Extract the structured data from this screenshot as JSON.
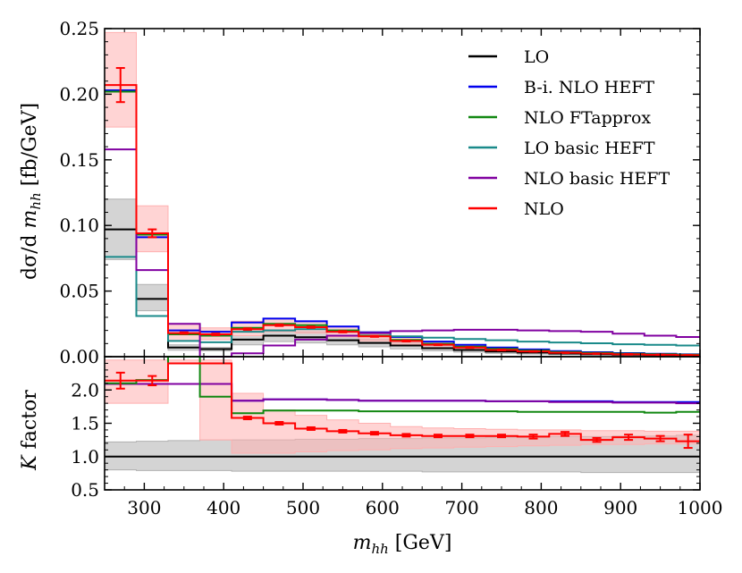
{
  "chart_data": {
    "type": "line",
    "style": "step",
    "bin_edges": [
      250,
      290,
      330,
      370,
      410,
      450,
      490,
      530,
      570,
      610,
      650,
      690,
      730,
      770,
      810,
      850,
      890,
      930,
      970,
      1000
    ],
    "x_label_main": "m",
    "x_label_sub": "hh",
    "x_label_unit": " [GeV]",
    "xlim": [
      250,
      1000
    ],
    "x_ticks": [
      "300",
      "400",
      "500",
      "600",
      "700",
      "800",
      "900",
      "1000"
    ],
    "x_tick_values": [
      300,
      400,
      500,
      600,
      700,
      800,
      900,
      1000
    ],
    "colors": {
      "LO": "#000000",
      "BiNLO": "#0000ee",
      "FTapprox": "#118811",
      "LObasic": "#1a8a8a",
      "NLObasic": "#8000a0",
      "NLO": "#ff0000"
    },
    "main": {
      "ylabel_pre": "dσ/d ",
      "ylabel_var": "m",
      "ylabel_sub": "hh",
      "ylabel_unit": " [fb/GeV]",
      "ylim": [
        0,
        0.25
      ],
      "y_ticks": [
        "0.00",
        "0.05",
        "0.10",
        "0.15",
        "0.20",
        "0.25"
      ],
      "y_tick_values": [
        0,
        0.05,
        0.1,
        0.15,
        0.2,
        0.25
      ],
      "bands": [
        {
          "series": "LO",
          "fill": "#b0b0b0",
          "lo": [
            0.074,
            0.035,
            0.005,
            0.0045,
            0.009,
            0.0115,
            0.0105,
            0.009,
            0.0075,
            0.006,
            0.0045,
            0.0035,
            0.0025,
            0.002,
            0.0015,
            0.0012,
            0.001,
            0.0008,
            0.0006
          ],
          "hi": [
            0.12,
            0.055,
            0.009,
            0.007,
            0.016,
            0.0205,
            0.019,
            0.016,
            0.0135,
            0.011,
            0.0085,
            0.0068,
            0.0052,
            0.0042,
            0.0033,
            0.0027,
            0.0021,
            0.0018,
            0.0014
          ]
        },
        {
          "series": "NLO",
          "fill": "#ffb0b0",
          "lo": [
            0.175,
            0.08,
            0.012,
            0.013,
            0.016,
            0.019,
            0.018,
            0.015,
            0.012,
            0.009,
            0.0068,
            0.0052,
            0.0038,
            0.003,
            0.0022,
            0.0017,
            0.0013,
            0.0011,
            0.0008
          ],
          "hi": [
            0.247,
            0.115,
            0.025,
            0.022,
            0.027,
            0.029,
            0.027,
            0.023,
            0.019,
            0.015,
            0.0112,
            0.0088,
            0.0065,
            0.005,
            0.0038,
            0.0029,
            0.0023,
            0.0018,
            0.0014
          ]
        }
      ],
      "series": [
        {
          "key": "LO",
          "name": "LO",
          "values": [
            0.097,
            0.044,
            0.007,
            0.0058,
            0.013,
            0.016,
            0.0148,
            0.0125,
            0.0105,
            0.0085,
            0.0065,
            0.0051,
            0.0039,
            0.0031,
            0.0024,
            0.0019,
            0.0015,
            0.0013,
            0.001
          ]
        },
        {
          "key": "BiNLO",
          "name": "B-i. NLO HEFT",
          "values": [
            0.203,
            0.091,
            0.02,
            0.019,
            0.026,
            0.029,
            0.027,
            0.023,
            0.0185,
            0.015,
            0.0115,
            0.009,
            0.007,
            0.0055,
            0.0042,
            0.0034,
            0.0027,
            0.0022,
            0.0018
          ]
        },
        {
          "key": "FTapprox",
          "name": "NLO FTapprox",
          "values": [
            0.202,
            0.093,
            0.017,
            0.016,
            0.022,
            0.025,
            0.024,
            0.02,
            0.016,
            0.0128,
            0.0098,
            0.0077,
            0.006,
            0.0047,
            0.0036,
            0.0029,
            0.0023,
            0.0019,
            0.0015
          ]
        },
        {
          "key": "LObasic",
          "name": "LO basic HEFT",
          "values": [
            0.076,
            0.031,
            0.012,
            0.011,
            0.019,
            0.02,
            0.021,
            0.019,
            0.018,
            0.0155,
            0.0145,
            0.0135,
            0.0125,
            0.0115,
            0.0108,
            0.0102,
            0.0095,
            0.009,
            0.0085
          ]
        },
        {
          "key": "NLObasic",
          "name": "NLO basic HEFT",
          "values": [
            0.158,
            0.066,
            0.025,
            0.0,
            0.0025,
            0.0085,
            0.013,
            0.016,
            0.018,
            0.0195,
            0.02,
            0.0205,
            0.0205,
            0.02,
            0.0195,
            0.019,
            0.0175,
            0.016,
            0.015
          ]
        },
        {
          "key": "NLO",
          "name": "NLO",
          "values": [
            0.207,
            0.094,
            0.018,
            0.017,
            0.021,
            0.024,
            0.0225,
            0.019,
            0.0155,
            0.012,
            0.0091,
            0.007,
            0.0051,
            0.004,
            0.003,
            0.0023,
            0.0018,
            0.0014,
            0.0011
          ]
        }
      ],
      "errors": {
        "series": "NLO",
        "err": [
          0.013,
          0.003,
          0.0006,
          0.0006,
          0.0006,
          0.0006,
          0.0005,
          0.0005,
          0.0004,
          0.0004,
          0.0003,
          0.0003,
          0.0003,
          0.0002,
          0.0002,
          0.0002,
          0.0002,
          0.0002,
          0.0002
        ]
      }
    },
    "ratio": {
      "ylabel_var": "K",
      "ylabel_text": " factor",
      "ylim": [
        0.5,
        2.5
      ],
      "y_ticks": [
        "0.5",
        "1.0",
        "1.5",
        "2.0"
      ],
      "y_tick_values": [
        0.5,
        1.0,
        1.5,
        2.0
      ],
      "bands": [
        {
          "series": "LO",
          "fill": "#b0b0b0",
          "lo": [
            0.8,
            0.79,
            0.79,
            0.79,
            0.78,
            0.78,
            0.78,
            0.78,
            0.78,
            0.78,
            0.77,
            0.77,
            0.77,
            0.77,
            0.77,
            0.76,
            0.76,
            0.76,
            0.76
          ],
          "hi": [
            1.22,
            1.23,
            1.24,
            1.25,
            1.25,
            1.25,
            1.26,
            1.26,
            1.27,
            1.27,
            1.28,
            1.28,
            1.29,
            1.29,
            1.3,
            1.3,
            1.31,
            1.31,
            1.32
          ]
        },
        {
          "series": "NLO",
          "fill": "#ffb0b0",
          "lo": [
            1.8,
            1.8,
            2.4,
            1.25,
            1.05,
            1.05,
            1.07,
            1.09,
            1.1,
            1.12,
            1.13,
            1.14,
            1.15,
            1.16,
            1.17,
            1.18,
            1.18,
            1.19,
            1.19
          ],
          "hi": [
            2.45,
            2.45,
            2.45,
            2.45,
            1.95,
            1.7,
            1.62,
            1.55,
            1.5,
            1.45,
            1.43,
            1.42,
            1.41,
            1.4,
            1.4,
            1.39,
            1.39,
            1.38,
            1.38
          ]
        }
      ],
      "series": [
        {
          "key": "LO",
          "values": [
            1.0,
            1.0,
            1.0,
            1.0,
            1.0,
            1.0,
            1.0,
            1.0,
            1.0,
            1.0,
            1.0,
            1.0,
            1.0,
            1.0,
            1.0,
            1.0,
            1.0,
            1.0,
            1.0
          ]
        },
        {
          "key": "BiNLO",
          "values": [
            2.09,
            2.09,
            2.09,
            2.09,
            1.84,
            1.86,
            1.86,
            1.85,
            1.84,
            1.84,
            1.84,
            1.84,
            1.83,
            1.83,
            1.83,
            1.83,
            1.82,
            1.82,
            1.82
          ]
        },
        {
          "key": "NLObasic",
          "values": [
            2.09,
            2.09,
            2.09,
            2.09,
            1.84,
            1.86,
            1.86,
            1.85,
            1.84,
            1.84,
            1.84,
            1.84,
            1.83,
            1.83,
            1.82,
            1.82,
            1.81,
            1.81,
            1.8
          ]
        },
        {
          "key": "FTapprox",
          "values": [
            2.1,
            2.15,
            2.5,
            1.9,
            1.65,
            1.69,
            1.69,
            1.69,
            1.68,
            1.68,
            1.68,
            1.68,
            1.68,
            1.67,
            1.67,
            1.67,
            1.67,
            1.66,
            1.67
          ]
        },
        {
          "key": "NLO",
          "values": [
            2.14,
            2.14,
            2.4,
            2.4,
            1.58,
            1.5,
            1.42,
            1.38,
            1.35,
            1.32,
            1.31,
            1.31,
            1.31,
            1.3,
            1.34,
            1.25,
            1.29,
            1.27,
            1.23
          ]
        }
      ],
      "errors": {
        "series": "NLO",
        "err": [
          0.12,
          0.07,
          0,
          0,
          0.02,
          0.02,
          0.02,
          0.02,
          0.02,
          0.02,
          0.02,
          0.02,
          0.02,
          0.03,
          0.03,
          0.03,
          0.04,
          0.04,
          0.1
        ]
      }
    },
    "legend": {
      "position": "top-right",
      "entries": [
        {
          "key": "LO",
          "label": "LO"
        },
        {
          "key": "BiNLO",
          "label": "B-i. NLO HEFT"
        },
        {
          "key": "FTapprox",
          "label": "NLO FTapprox"
        },
        {
          "key": "LObasic",
          "label": "LO basic HEFT"
        },
        {
          "key": "NLObasic",
          "label": "NLO basic HEFT"
        },
        {
          "key": "NLO",
          "label": "NLO"
        }
      ]
    }
  }
}
